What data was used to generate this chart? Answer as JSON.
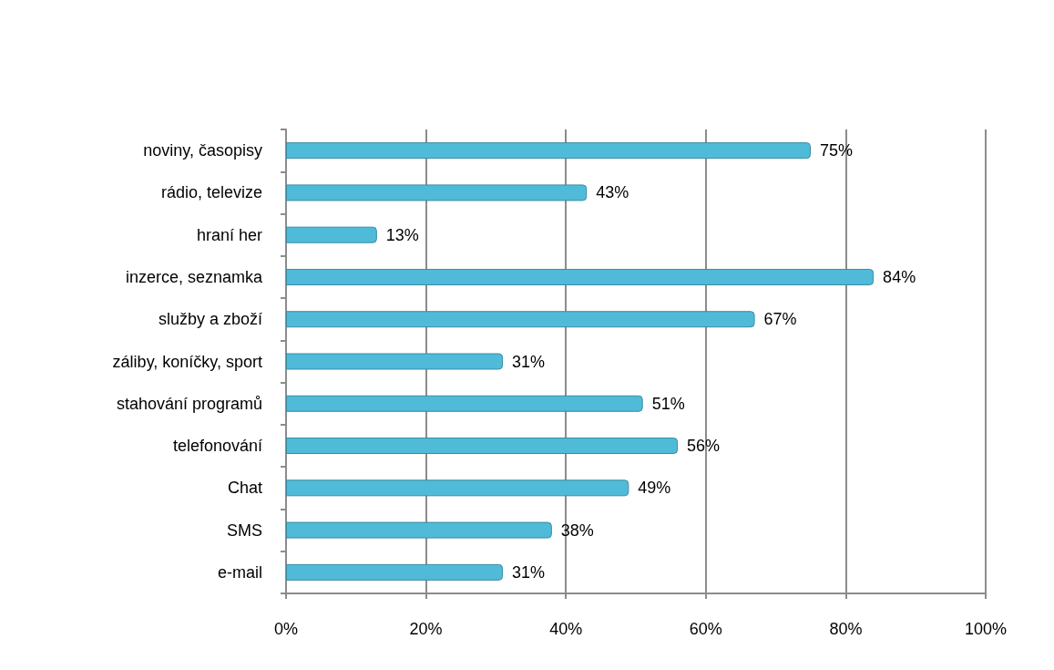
{
  "chart_data": {
    "type": "bar",
    "orientation": "horizontal",
    "categories": [
      "noviny, časopisy",
      "rádio, televize",
      "hraní her",
      "inzerce, seznamka",
      "služby a zboží",
      "záliby, koníčky, sport",
      "stahování programů",
      "telefonování",
      "Chat",
      "SMS",
      "e-mail"
    ],
    "values": [
      75,
      43,
      13,
      84,
      67,
      31,
      51,
      56,
      49,
      38,
      31
    ],
    "value_labels": [
      "75%",
      "43%",
      "13%",
      "84%",
      "67%",
      "31%",
      "51%",
      "56%",
      "49%",
      "38%",
      "31%"
    ],
    "color": "#4fbbd9",
    "xlim": [
      0,
      100
    ],
    "xticks": [
      {
        "value": 0,
        "label": "0%"
      },
      {
        "value": 20,
        "label": "20%"
      },
      {
        "value": 40,
        "label": "40%"
      },
      {
        "value": 60,
        "label": "60%"
      },
      {
        "value": 80,
        "label": "80%"
      },
      {
        "value": 100,
        "label": "100%"
      }
    ],
    "grid": "x"
  }
}
